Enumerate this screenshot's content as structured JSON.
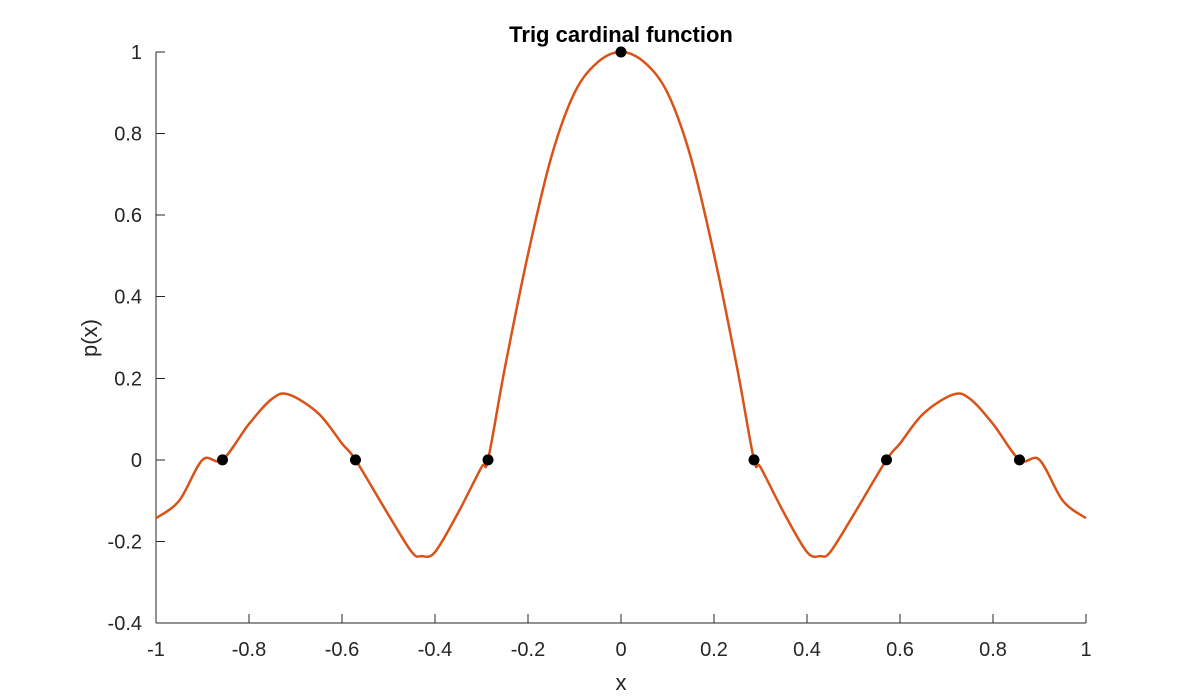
{
  "chart_data": {
    "type": "line",
    "title": "Trig cardinal function",
    "xlabel": "x",
    "ylabel": "p(x)",
    "xlim": [
      -1,
      1
    ],
    "ylim": [
      -0.4,
      1
    ],
    "xticks": [
      -1,
      -0.8,
      -0.6,
      -0.4,
      -0.2,
      0,
      0.2,
      0.4,
      0.6,
      0.8,
      1
    ],
    "xtick_labels": [
      "-1",
      "-0.8",
      "-0.6",
      "-0.4",
      "-0.2",
      "0",
      "0.2",
      "0.4",
      "0.6",
      "0.8",
      "1"
    ],
    "yticks": [
      -0.4,
      -0.2,
      0,
      0.2,
      0.4,
      0.6,
      0.8,
      1
    ],
    "ytick_labels": [
      "-0.4",
      "-0.2",
      "0",
      "0.2",
      "0.4",
      "0.6",
      "0.8",
      "1"
    ],
    "grid": false,
    "series": [
      {
        "color": "#d95319",
        "style": "line",
        "x": [
          -1,
          -0.95,
          -0.9,
          -0.857,
          -0.8,
          -0.75,
          -0.714,
          -0.65,
          -0.6,
          -0.571,
          -0.5,
          -0.45,
          -0.429,
          -0.4,
          -0.35,
          -0.3,
          -0.286,
          -0.25,
          -0.2,
          -0.15,
          -0.1,
          -0.05,
          0,
          0.05,
          0.1,
          0.15,
          0.2,
          0.25,
          0.286,
          0.3,
          0.35,
          0.4,
          0.429,
          0.45,
          0.5,
          0.571,
          0.6,
          0.65,
          0.714,
          0.75,
          0.8,
          0.857,
          0.9,
          0.95,
          1
        ],
        "y": [
          -0.143,
          -0.1,
          0.0,
          0.0,
          0.088,
          0.15,
          0.16,
          0.113,
          0.04,
          0.0,
          -0.135,
          -0.226,
          -0.236,
          -0.226,
          -0.129,
          -0.018,
          0.0,
          0.224,
          0.504,
          0.742,
          0.9,
          0.975,
          1.0,
          0.975,
          0.9,
          0.742,
          0.504,
          0.224,
          0.0,
          -0.018,
          -0.129,
          -0.226,
          -0.236,
          -0.226,
          -0.135,
          0.0,
          0.04,
          0.113,
          0.16,
          0.15,
          0.088,
          0.0,
          0.0,
          -0.1,
          -0.143
        ]
      },
      {
        "color": "#000000",
        "style": "markers",
        "x": [
          -0.857,
          -0.571,
          -0.286,
          0,
          0.286,
          0.571,
          0.857
        ],
        "y": [
          0,
          0,
          0,
          1,
          0,
          0,
          0
        ]
      }
    ]
  }
}
